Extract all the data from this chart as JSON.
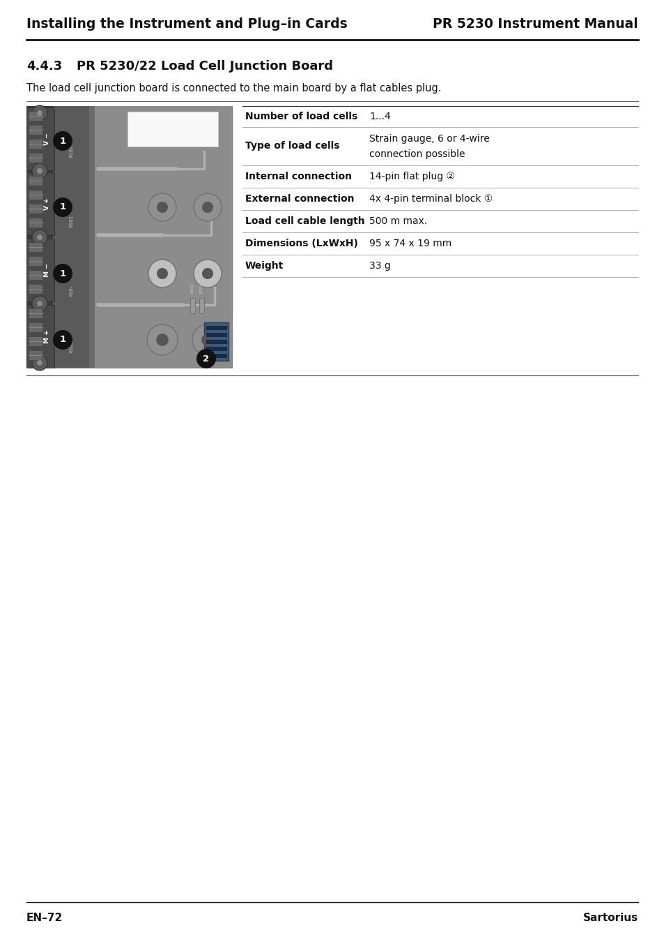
{
  "page_bg": "#ffffff",
  "header_left": "Installing the Instrument and Plug–in Cards",
  "header_right": "PR 5230 Instrument Manual",
  "section_number": "4.4.3",
  "section_title": "PR 5230/22 Load Cell Junction Board",
  "intro_text": "The load cell junction board is connected to the main board by a flat cables plug.",
  "table_rows": [
    {
      "label": "Number of load cells",
      "value": "1...4",
      "multiline": false
    },
    {
      "label": "Type of load cells",
      "value": "Strain gauge, 6 or 4-wire\nconnection possible",
      "multiline": true
    },
    {
      "label": "Internal connection",
      "value": "14-pin flat plug ②",
      "multiline": false
    },
    {
      "label": "External connection",
      "value": "4x 4-pin terminal block ①",
      "multiline": false
    },
    {
      "label": "Load cell cable length",
      "value": "500 m max.",
      "multiline": false
    },
    {
      "label": "Dimensions (LxWxH)",
      "value": "95 x 74 x 19 mm",
      "multiline": false
    },
    {
      "label": "Weight",
      "value": "33 g",
      "multiline": false
    }
  ],
  "footer_left": "EN–72",
  "footer_right": "Sartorius"
}
